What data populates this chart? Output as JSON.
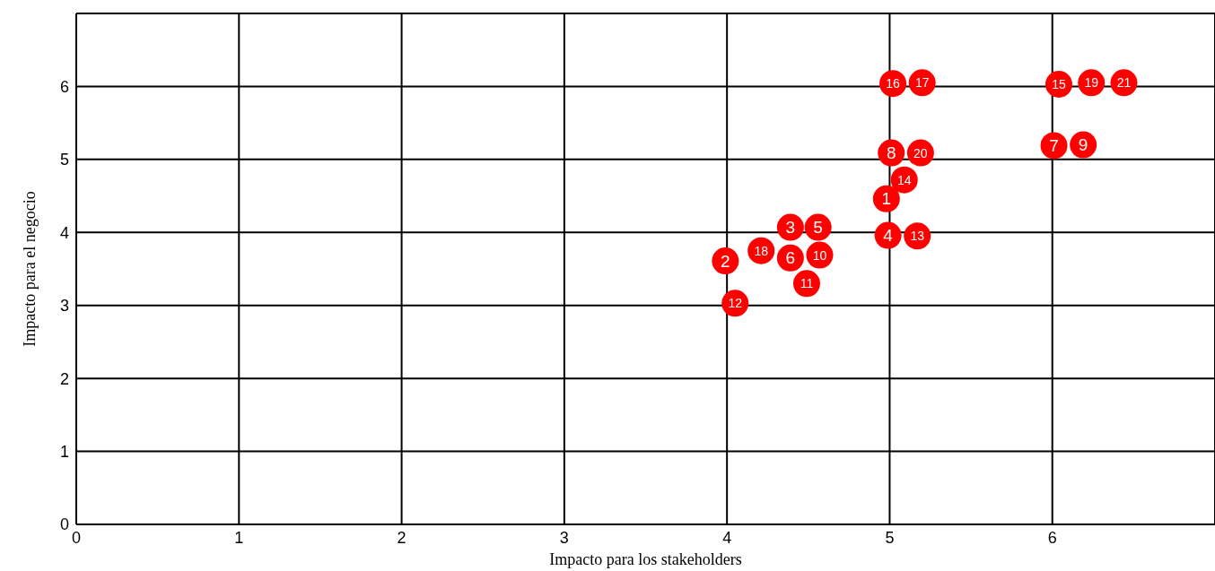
{
  "chart_data": {
    "type": "scatter",
    "xlabel": "Impacto para los stakeholders",
    "ylabel": "Impacto para el negocio",
    "x": [
      4.98,
      3.99,
      4.39,
      4.99,
      4.56,
      4.39,
      6.01,
      5.01,
      6.19,
      4.57,
      4.49,
      4.05,
      5.17,
      5.09,
      6.04,
      5.02,
      5.2,
      4.21,
      6.24,
      5.19,
      6.44
    ],
    "series": [
      {
        "color": "#ff0000",
        "values": [
          4.46,
          3.61,
          4.07,
          3.96,
          4.07,
          3.65,
          5.19,
          5.09,
          5.2,
          3.69,
          3.3,
          3.03,
          3.95,
          4.72,
          6.03,
          6.04,
          6.05,
          3.75,
          6.05,
          5.09,
          6.05
        ]
      }
    ],
    "annotations": [
      {
        "text": "1",
        "x": 4.98,
        "y": 4.46
      },
      {
        "text": "2",
        "x": 3.99,
        "y": 3.61
      },
      {
        "text": "3",
        "x": 4.39,
        "y": 4.07
      },
      {
        "text": "4",
        "x": 4.99,
        "y": 3.96
      },
      {
        "text": "5",
        "x": 4.56,
        "y": 4.07
      },
      {
        "text": "6",
        "x": 4.39,
        "y": 3.65
      },
      {
        "text": "7",
        "x": 6.01,
        "y": 5.19
      },
      {
        "text": "8",
        "x": 5.01,
        "y": 5.09
      },
      {
        "text": "9",
        "x": 6.19,
        "y": 5.2
      },
      {
        "text": "10",
        "x": 4.57,
        "y": 3.69
      },
      {
        "text": "11",
        "x": 4.49,
        "y": 3.3
      },
      {
        "text": "12",
        "x": 4.05,
        "y": 3.03
      },
      {
        "text": "13",
        "x": 5.17,
        "y": 3.95
      },
      {
        "text": "14",
        "x": 5.09,
        "y": 4.72
      },
      {
        "text": "15",
        "x": 6.04,
        "y": 6.03
      },
      {
        "text": "16",
        "x": 5.02,
        "y": 6.04
      },
      {
        "text": "17",
        "x": 5.2,
        "y": 6.05
      },
      {
        "text": "18",
        "x": 4.21,
        "y": 3.75
      },
      {
        "text": "19",
        "x": 6.24,
        "y": 6.05
      },
      {
        "text": "20",
        "x": 5.19,
        "y": 5.09
      },
      {
        "text": "21",
        "x": 6.44,
        "y": 6.05
      }
    ],
    "xlim": [
      0,
      7
    ],
    "xticks": [
      0,
      1,
      2,
      3,
      4,
      5,
      6
    ],
    "ylim": [
      0,
      7
    ],
    "yticks": [
      0,
      1,
      2,
      3,
      4,
      5,
      6
    ],
    "grid": true,
    "marker": "circle"
  }
}
